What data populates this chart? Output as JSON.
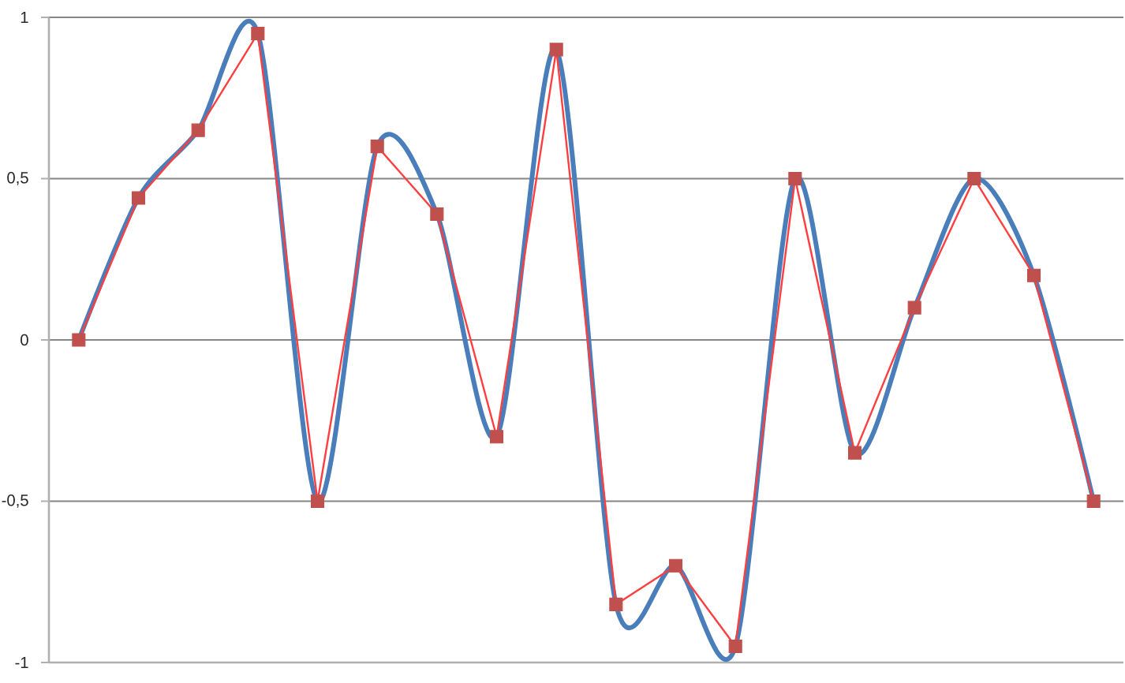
{
  "chart_data": {
    "type": "line",
    "categories": [
      null,
      null,
      null,
      null,
      null,
      null,
      null,
      null,
      null,
      null,
      null,
      null,
      null,
      null,
      null,
      null,
      null,
      null
    ],
    "series": [
      {
        "color": "#4a7ebb",
        "values": [
          0,
          0.44,
          0.65,
          0.95,
          -0.5,
          0.6,
          0.39,
          -0.3,
          0.9,
          -0.82,
          -0.7,
          -0.95,
          0.5,
          -0.35,
          0.1,
          0.5,
          0.2,
          -0.5
        ]
      },
      {
        "color": "#ff3f3f",
        "marker": "square",
        "colors": [
          "#c0504d",
          "#c0504d",
          "#c0504d",
          "#c0504d",
          "#c0504d",
          "#c0504d",
          "#c0504d",
          "#c0504d",
          "#c0504d",
          "#c0504d",
          "#c0504d",
          "#c0504d",
          "#c0504d",
          "#c0504d",
          "#c0504d",
          "#c0504d",
          "#c0504d",
          "#c0504d"
        ],
        "values": [
          0,
          0.44,
          0.65,
          0.95,
          -0.5,
          0.6,
          0.39,
          -0.3,
          0.9,
          -0.82,
          -0.7,
          -0.95,
          0.5,
          -0.35,
          0.1,
          0.5,
          0.2,
          -0.5
        ]
      }
    ],
    "ylim": [
      -1,
      1
    ],
    "yticks": [
      -1,
      {
        "value": -0.5,
        "label": "-0,5"
      },
      0,
      {
        "value": 0.5,
        "label": "0,5"
      },
      1
    ],
    "grid": "y",
    "tick_labels": "y",
    "line_style": "solid"
  }
}
